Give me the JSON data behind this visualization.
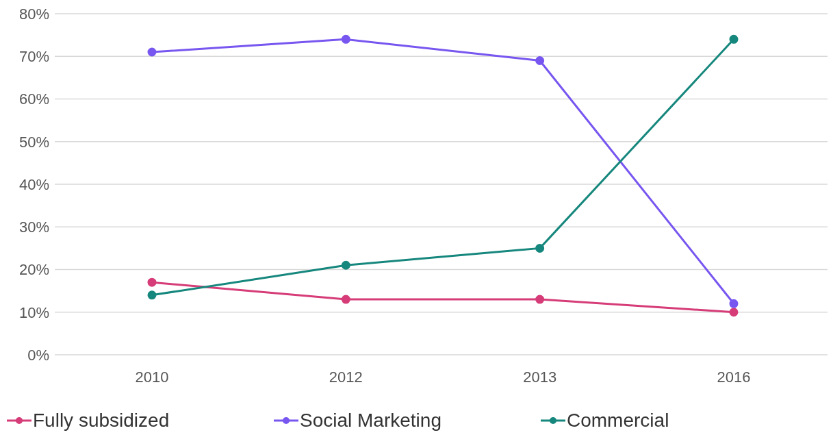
{
  "chart_data": {
    "type": "line",
    "categories": [
      "2010",
      "2012",
      "2013",
      "2016"
    ],
    "series": [
      {
        "name": "Fully subsidized",
        "color": "#d63c78",
        "values": [
          17,
          13,
          13,
          10
        ]
      },
      {
        "name": "Social Marketing",
        "color": "#7856f0",
        "values": [
          71,
          74,
          69,
          12
        ]
      },
      {
        "name": "Commercial",
        "color": "#16877d",
        "values": [
          14,
          21,
          25,
          74
        ]
      }
    ],
    "ylim": [
      0,
      80
    ],
    "yticks": [
      {
        "value": 0,
        "label": "0%"
      },
      {
        "value": 10,
        "label": "10%"
      },
      {
        "value": 20,
        "label": "20%"
      },
      {
        "value": 30,
        "label": "30%"
      },
      {
        "value": 40,
        "label": "40%"
      },
      {
        "value": 50,
        "label": "50%"
      },
      {
        "value": 60,
        "label": "60%"
      },
      {
        "value": 70,
        "label": "70%"
      },
      {
        "value": 80,
        "label": "80%"
      }
    ],
    "grid": "y",
    "legend": "bottom left",
    "marker": "circle",
    "line_style": "solid"
  }
}
